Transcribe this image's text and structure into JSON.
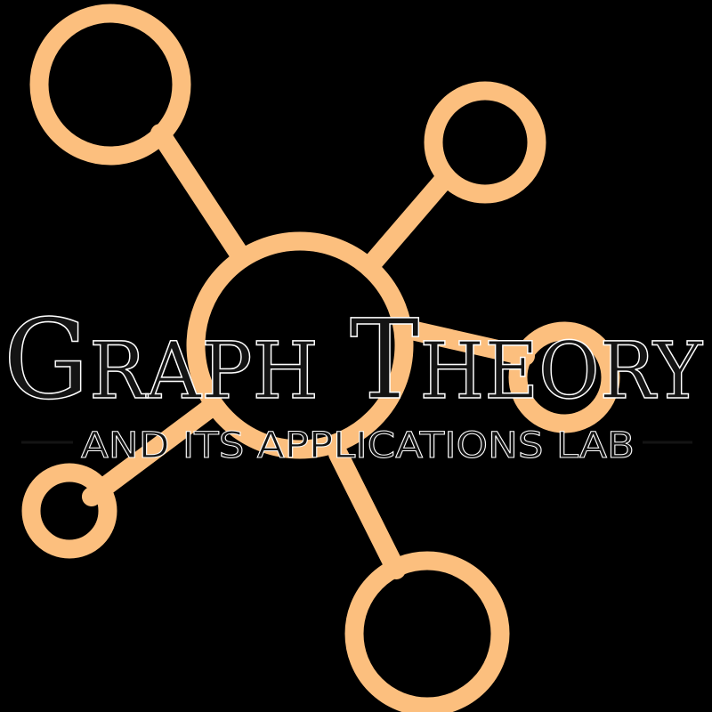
{
  "logo": {
    "title_first_initial": "G",
    "title_first_rest": "RAPH",
    "title_second_initial": "T",
    "title_second_rest": "HEORY",
    "subtitle": "AND ITS APPLICATIONS LAB"
  },
  "colors": {
    "background": "#000000",
    "network": "#FCBF7E",
    "text": "#141414",
    "text_outline": "#FFFFFF"
  }
}
